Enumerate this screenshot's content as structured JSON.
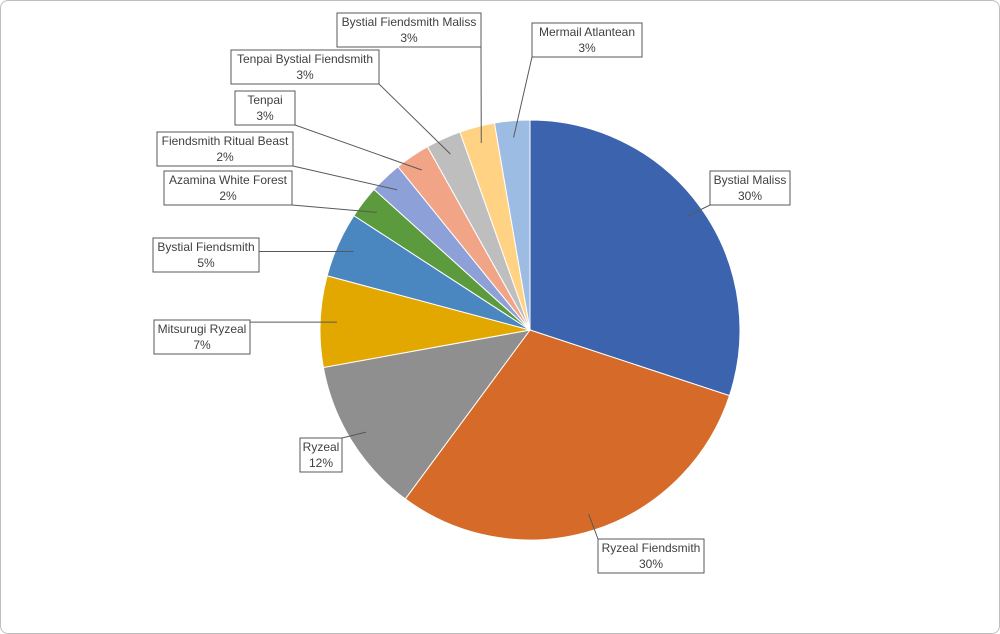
{
  "chart_data": {
    "type": "pie",
    "title": "",
    "start_angle_deg": 0,
    "direction": "clockwise",
    "legend": "none",
    "slices": [
      {
        "label": "Bystial Maliss",
        "value": 30,
        "value_label": "30%",
        "color": "#3c64ae"
      },
      {
        "label": "Ryzeal Fiendsmith",
        "value": 30,
        "value_label": "30%",
        "color": "#d66a28"
      },
      {
        "label": "Ryzeal",
        "value": 12,
        "value_label": "12%",
        "color": "#8f8f8f"
      },
      {
        "label": "Mitsurugi Ryzeal",
        "value": 7,
        "value_label": "7%",
        "color": "#e3a800"
      },
      {
        "label": "Bystial Fiendsmith",
        "value": 5,
        "value_label": "5%",
        "color": "#4a86c0"
      },
      {
        "label": "Azamina White Forest",
        "value": 2.5,
        "value_label": "2%",
        "color": "#5b9a3d"
      },
      {
        "label": "Fiendsmith Ritual Beast",
        "value": 2.5,
        "value_label": "2%",
        "color": "#8ea0d8"
      },
      {
        "label": "Tenpai",
        "value": 2.7,
        "value_label": "3%",
        "color": "#f2a586"
      },
      {
        "label": "Tenpai Bystial Fiendsmith",
        "value": 2.7,
        "value_label": "3%",
        "color": "#bebebe"
      },
      {
        "label": "Bystial Fiendsmith Maliss",
        "value": 2.7,
        "value_label": "3%",
        "color": "#ffd383"
      },
      {
        "label": "Mermail Atlantean",
        "value": 2.7,
        "value_label": "3%",
        "color": "#9dbce3"
      }
    ]
  }
}
